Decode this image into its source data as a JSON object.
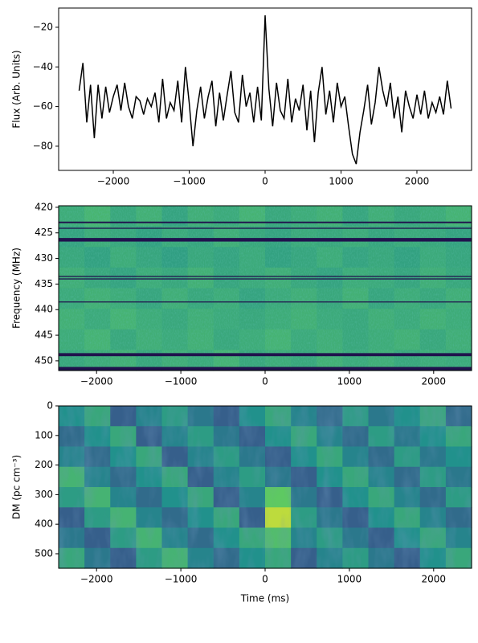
{
  "chart_data": [
    {
      "type": "line",
      "ylabel": "Flux (Arb. Units)",
      "color": "#000000",
      "x": [
        -2450,
        -2400,
        -2350,
        -2300,
        -2250,
        -2200,
        -2150,
        -2100,
        -2050,
        -2000,
        -1950,
        -1900,
        -1850,
        -1800,
        -1750,
        -1700,
        -1650,
        -1600,
        -1550,
        -1500,
        -1450,
        -1400,
        -1350,
        -1300,
        -1250,
        -1200,
        -1150,
        -1100,
        -1050,
        -1000,
        -950,
        -900,
        -850,
        -800,
        -750,
        -700,
        -650,
        -600,
        -550,
        -500,
        -450,
        -400,
        -350,
        -300,
        -250,
        -200,
        -150,
        -100,
        -50,
        0,
        50,
        100,
        150,
        200,
        250,
        300,
        350,
        400,
        450,
        500,
        550,
        600,
        650,
        700,
        750,
        800,
        850,
        900,
        950,
        1000,
        1050,
        1100,
        1150,
        1200,
        1250,
        1300,
        1350,
        1400,
        1450,
        1500,
        1550,
        1600,
        1650,
        1700,
        1750,
        1800,
        1850,
        1900,
        1950,
        2000,
        2050,
        2100,
        2150,
        2200,
        2250,
        2300,
        2350,
        2400,
        2450
      ],
      "values": [
        -52,
        -38,
        -68,
        -49,
        -76,
        -49,
        -66,
        -50,
        -63,
        -55,
        -49,
        -62,
        -48,
        -60,
        -66,
        -55,
        -57,
        -64,
        -56,
        -60,
        -53,
        -68,
        -46,
        -66,
        -58,
        -62,
        -47,
        -68,
        -40,
        -58,
        -80,
        -62,
        -50,
        -66,
        -55,
        -47,
        -70,
        -53,
        -67,
        -54,
        -42,
        -63,
        -68,
        -44,
        -60,
        -53,
        -68,
        -50,
        -67,
        -14,
        -51,
        -70,
        -48,
        -62,
        -66,
        -46,
        -68,
        -56,
        -62,
        -49,
        -72,
        -52,
        -78,
        -53,
        -40,
        -64,
        -52,
        -68,
        -48,
        -60,
        -55,
        -70,
        -84,
        -89,
        -73,
        -62,
        -49,
        -69,
        -58,
        -40,
        -52,
        -60,
        -48,
        -66,
        -55,
        -73,
        -52,
        -60,
        -66,
        -54,
        -64,
        -52,
        -66,
        -58,
        -63,
        -55,
        -64,
        -47,
        -61
      ],
      "xlim": [
        -2720,
        2720
      ],
      "ylim": [
        -92.2,
        -10.3
      ],
      "xticks": [
        {
          "value": -2000,
          "label": "−2000"
        },
        {
          "value": -1000,
          "label": "−1000"
        },
        0,
        1000,
        2000
      ],
      "yticks": [
        {
          "value": -80,
          "label": "−80"
        },
        {
          "value": -60,
          "label": "−60"
        },
        {
          "value": -40,
          "label": "−40"
        },
        {
          "value": -20,
          "label": "−20"
        }
      ]
    },
    {
      "type": "heatmap",
      "ylabel": "Frequency (MHz)",
      "colormap": "viridis",
      "zlim": [
        0,
        1
      ],
      "y_inverted": true,
      "xlim": [
        -2450,
        2450
      ],
      "ylim": [
        419.7,
        451.9
      ],
      "xticks": [
        {
          "value": -2000,
          "label": "−2000"
        },
        {
          "value": -1000,
          "label": "−1000"
        },
        0,
        1000,
        2000
      ],
      "yticks": [
        420,
        425,
        430,
        435,
        440,
        445,
        450
      ],
      "mask_color": "#20124d",
      "masked": [
        [
          422.8,
          423.1
        ],
        [
          424.0,
          424.2
        ],
        [
          426.0,
          426.7
        ],
        [
          433.4,
          433.6
        ],
        [
          433.9,
          434.1
        ],
        [
          438.4,
          438.6
        ],
        [
          448.5,
          449.1
        ],
        [
          451.2,
          451.9
        ]
      ],
      "z": [
        [
          0.62,
          0.66,
          0.6,
          0.64,
          0.58,
          0.63,
          0.61,
          0.65,
          0.6,
          0.62,
          0.64,
          0.59,
          0.63,
          0.6,
          0.62,
          0.65
        ],
        [
          0.58,
          0.62,
          0.6,
          0.57,
          0.61,
          0.59,
          0.63,
          0.6,
          0.58,
          0.61,
          0.6,
          0.62,
          0.59,
          0.61,
          0.6,
          0.58
        ],
        [
          0.6,
          0.57,
          0.62,
          0.59,
          0.56,
          0.6,
          0.58,
          0.61,
          0.57,
          0.59,
          0.62,
          0.58,
          0.6,
          0.57,
          0.61,
          0.59
        ],
        [
          0.63,
          0.6,
          0.58,
          0.62,
          0.6,
          0.64,
          0.59,
          0.61,
          0.63,
          0.6,
          0.58,
          0.62,
          0.61,
          0.59,
          0.63,
          0.6
        ],
        [
          0.61,
          0.64,
          0.62,
          0.59,
          0.63,
          0.6,
          0.62,
          0.58,
          0.61,
          0.63,
          0.6,
          0.64,
          0.59,
          0.62,
          0.6,
          0.63
        ],
        [
          0.64,
          0.61,
          0.65,
          0.62,
          0.6,
          0.63,
          0.61,
          0.6,
          0.62,
          0.64,
          0.61,
          0.6,
          0.63,
          0.61,
          0.64,
          0.62
        ],
        [
          0.62,
          0.65,
          0.6,
          0.63,
          0.61,
          0.64,
          0.6,
          0.62,
          0.65,
          0.61,
          0.63,
          0.6,
          0.62,
          0.64,
          0.6,
          0.63
        ],
        [
          0.6,
          0.62,
          0.64,
          0.6,
          0.63,
          0.61,
          0.65,
          0.6,
          0.62,
          0.6,
          0.64,
          0.61,
          0.63,
          0.6,
          0.62,
          0.61
        ]
      ]
    },
    {
      "type": "heatmap",
      "xlabel": "Time (ms)",
      "ylabel": "DM (pc cm⁻³)",
      "colormap": "viridis",
      "zlim": [
        0,
        1
      ],
      "y_inverted": true,
      "xlim": [
        -2450,
        2450
      ],
      "ylim": [
        0,
        549
      ],
      "xticks": [
        {
          "value": -2000,
          "label": "−2000"
        },
        {
          "value": -1000,
          "label": "−1000"
        },
        0,
        1000,
        2000
      ],
      "yticks": [
        0,
        100,
        200,
        300,
        400,
        500
      ],
      "z": [
        [
          0.5,
          0.6,
          0.3,
          0.45,
          0.55,
          0.4,
          0.3,
          0.5,
          0.6,
          0.45,
          0.35,
          0.55,
          0.4,
          0.5,
          0.6,
          0.35
        ],
        [
          0.35,
          0.5,
          0.6,
          0.3,
          0.45,
          0.55,
          0.4,
          0.3,
          0.5,
          0.6,
          0.45,
          0.35,
          0.55,
          0.4,
          0.5,
          0.6
        ],
        [
          0.45,
          0.35,
          0.5,
          0.6,
          0.3,
          0.45,
          0.55,
          0.4,
          0.3,
          0.5,
          0.6,
          0.45,
          0.35,
          0.55,
          0.4,
          0.5
        ],
        [
          0.65,
          0.45,
          0.35,
          0.5,
          0.6,
          0.3,
          0.45,
          0.55,
          0.4,
          0.3,
          0.5,
          0.6,
          0.45,
          0.35,
          0.55,
          0.4
        ],
        [
          0.55,
          0.65,
          0.45,
          0.35,
          0.5,
          0.6,
          0.3,
          0.45,
          0.75,
          0.4,
          0.3,
          0.5,
          0.6,
          0.45,
          0.35,
          0.55
        ],
        [
          0.3,
          0.55,
          0.65,
          0.45,
          0.35,
          0.5,
          0.6,
          0.3,
          0.9,
          0.55,
          0.4,
          0.3,
          0.5,
          0.6,
          0.45,
          0.35
        ],
        [
          0.4,
          0.3,
          0.55,
          0.65,
          0.45,
          0.35,
          0.5,
          0.6,
          0.7,
          0.45,
          0.55,
          0.4,
          0.3,
          0.5,
          0.6,
          0.45
        ],
        [
          0.6,
          0.4,
          0.3,
          0.55,
          0.65,
          0.45,
          0.35,
          0.5,
          0.6,
          0.3,
          0.45,
          0.55,
          0.4,
          0.3,
          0.5,
          0.6
        ]
      ]
    }
  ]
}
